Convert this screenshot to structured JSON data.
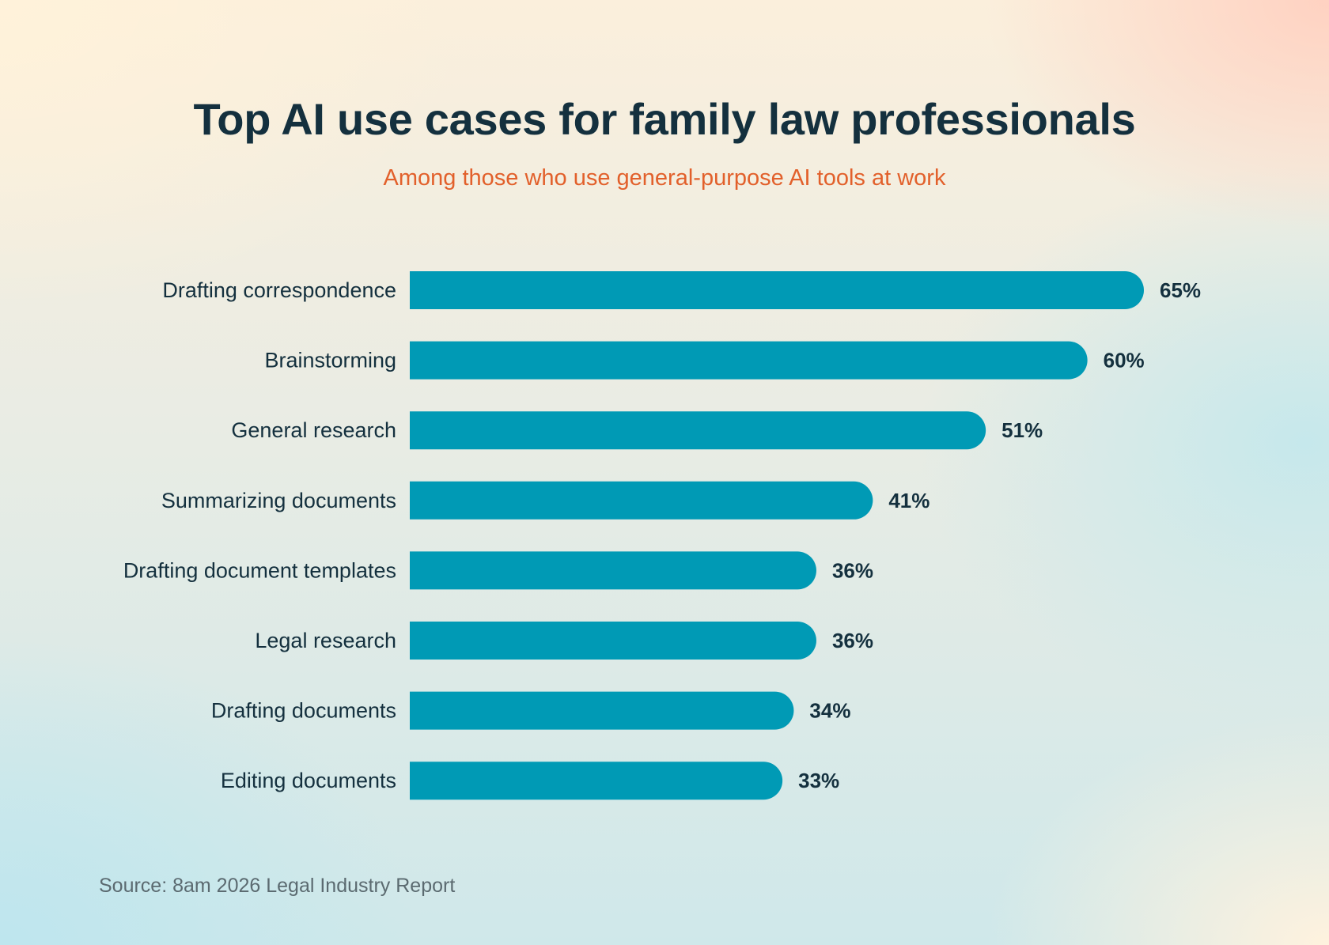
{
  "chart_data": {
    "type": "bar",
    "orientation": "horizontal",
    "title": "Top AI use cases for family law professionals",
    "subtitle": "Among those who use general-purpose AI tools at work",
    "categories": [
      "Drafting correspondence",
      "Brainstorming",
      "General research",
      "Summarizing documents",
      "Drafting document templates",
      "Legal research",
      "Drafting documents",
      "Editing documents"
    ],
    "values": [
      65,
      60,
      51,
      41,
      36,
      36,
      34,
      33
    ],
    "value_labels": [
      "65%",
      "60%",
      "51%",
      "41%",
      "36%",
      "36%",
      "34%",
      "33%"
    ],
    "unit": "%",
    "xlim": [
      0,
      65
    ],
    "grid": false,
    "legend": "none",
    "bar_color": "#009ab5",
    "source": "Source: 8am 2026 Legal Industry Report"
  },
  "colors": {
    "title": "#14303e",
    "subtitle": "#e2602b",
    "bar": "#009ab5",
    "source": "#5b6a70"
  }
}
